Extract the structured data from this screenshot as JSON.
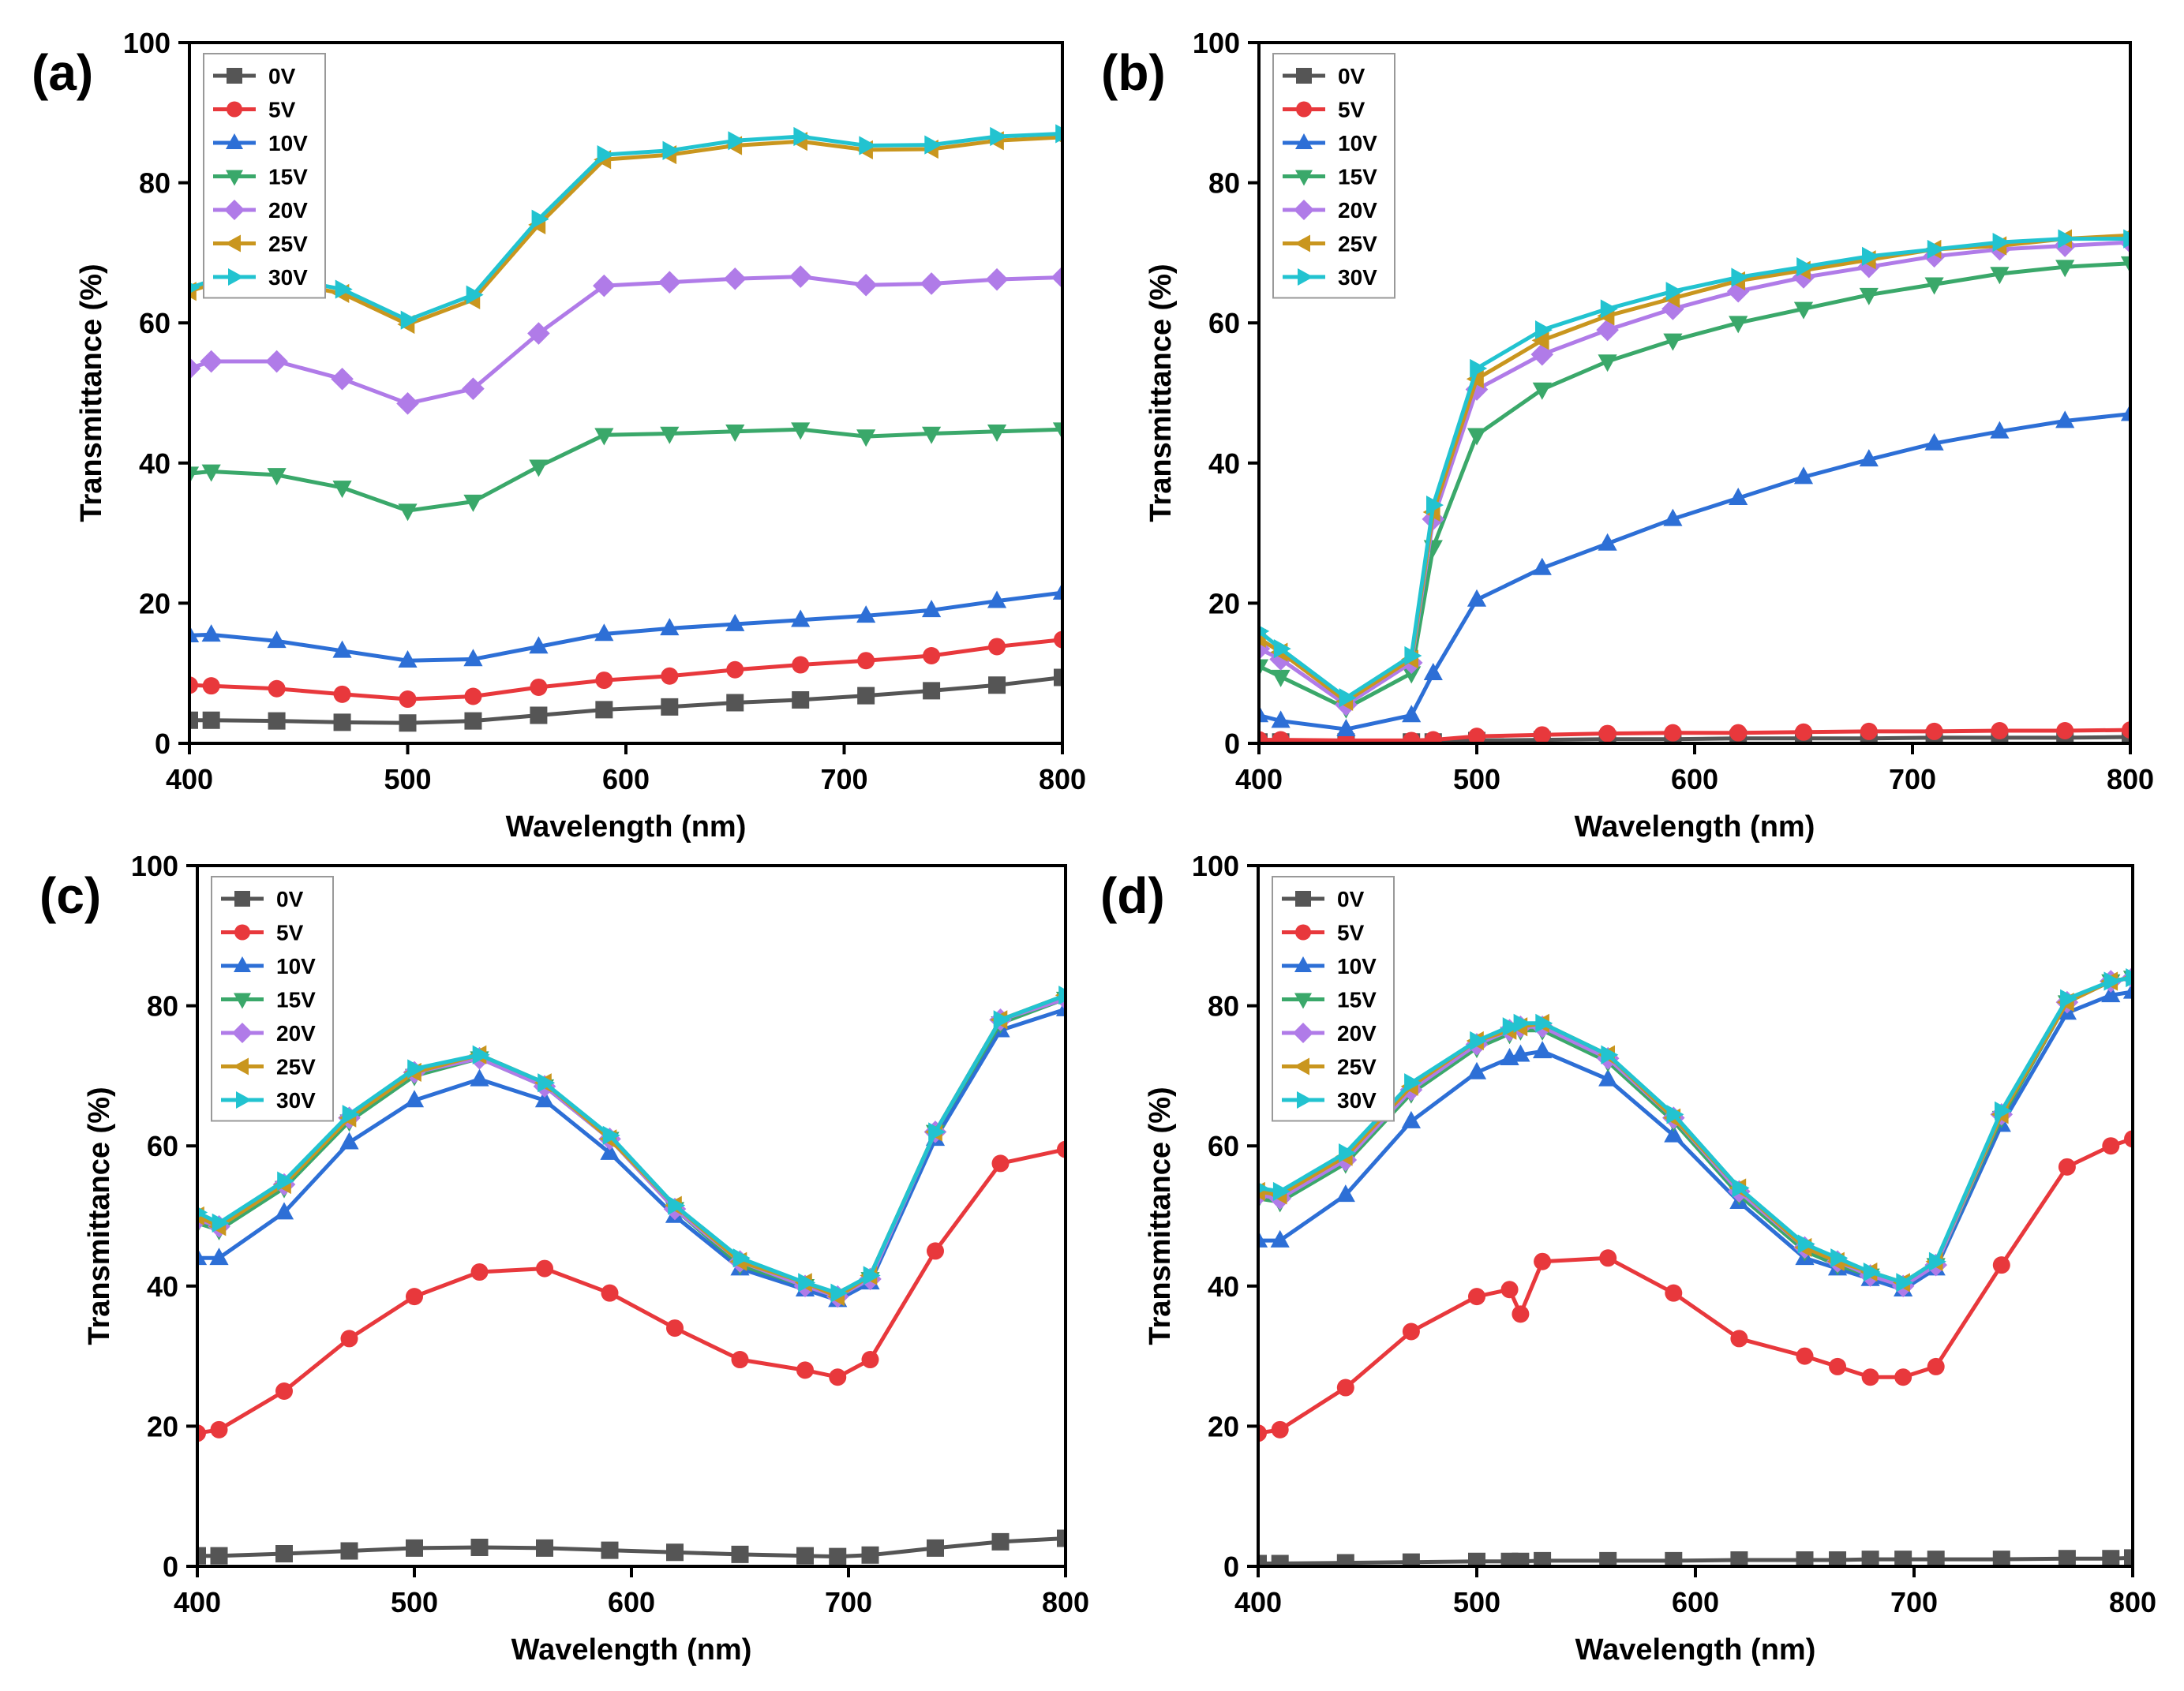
{
  "chart_data": [
    {
      "type": "line",
      "panel": "(a)",
      "xlabel": "Wavelength (nm)",
      "ylabel": "Transmittance (%)",
      "xlim": [
        400,
        800
      ],
      "ylim": [
        0,
        100
      ],
      "xticks": [
        400,
        500,
        600,
        700,
        800
      ],
      "yticks": [
        0,
        20,
        40,
        60,
        80,
        100
      ],
      "legend_position": "top-left",
      "x": [
        400,
        410,
        440,
        470,
        500,
        530,
        560,
        590,
        620,
        650,
        680,
        710,
        740,
        770,
        800
      ],
      "series": [
        {
          "name": "0V",
          "values": [
            3.3,
            3.3,
            3.2,
            3.0,
            2.9,
            3.2,
            4.0,
            4.8,
            5.2,
            5.8,
            6.2,
            6.8,
            7.5,
            8.3,
            9.4
          ]
        },
        {
          "name": "5V",
          "values": [
            8.3,
            8.2,
            7.8,
            7.0,
            6.3,
            6.7,
            8.0,
            9.0,
            9.6,
            10.5,
            11.2,
            11.8,
            12.5,
            13.8,
            14.8
          ]
        },
        {
          "name": "10V",
          "values": [
            15.4,
            15.5,
            14.6,
            13.2,
            11.8,
            12.0,
            13.8,
            15.6,
            16.4,
            17.0,
            17.6,
            18.2,
            19.0,
            20.3,
            21.5
          ]
        },
        {
          "name": "15V",
          "values": [
            38.5,
            38.8,
            38.3,
            36.5,
            33.2,
            34.5,
            39.5,
            44.0,
            44.2,
            44.5,
            44.8,
            43.8,
            44.2,
            44.5,
            44.8
          ]
        },
        {
          "name": "20V",
          "values": [
            53.5,
            54.5,
            54.5,
            52.0,
            48.5,
            50.6,
            58.5,
            65.3,
            65.8,
            66.3,
            66.6,
            65.4,
            65.6,
            66.2,
            66.5
          ]
        },
        {
          "name": "25V",
          "values": [
            64.5,
            65.5,
            66.0,
            64.2,
            59.8,
            63.3,
            74.0,
            83.3,
            84.0,
            85.3,
            85.9,
            84.7,
            84.8,
            86.0,
            86.5
          ]
        },
        {
          "name": "30V",
          "values": [
            65.0,
            66.0,
            66.6,
            64.8,
            60.4,
            64.0,
            74.8,
            84.0,
            84.6,
            86.0,
            86.6,
            85.3,
            85.4,
            86.6,
            87.0
          ]
        }
      ]
    },
    {
      "type": "line",
      "panel": "(b)",
      "xlabel": "Wavelength (nm)",
      "ylabel": "Transmittance (%)",
      "xlim": [
        400,
        800
      ],
      "ylim": [
        0,
        100
      ],
      "xticks": [
        400,
        500,
        600,
        700,
        800
      ],
      "yticks": [
        0,
        20,
        40,
        60,
        80,
        100
      ],
      "legend_position": "top-left",
      "x": [
        400,
        410,
        440,
        470,
        480,
        500,
        530,
        560,
        590,
        620,
        650,
        680,
        710,
        740,
        770,
        800
      ],
      "series": [
        {
          "name": "0V",
          "values": [
            0.2,
            0.2,
            0.2,
            0.2,
            0.2,
            0.4,
            0.5,
            0.6,
            0.6,
            0.7,
            0.7,
            0.7,
            0.8,
            0.8,
            0.8,
            0.9
          ]
        },
        {
          "name": "5V",
          "values": [
            0.5,
            0.5,
            0.4,
            0.4,
            0.5,
            1.0,
            1.2,
            1.4,
            1.5,
            1.5,
            1.6,
            1.7,
            1.7,
            1.8,
            1.8,
            1.9
          ]
        },
        {
          "name": "10V",
          "values": [
            4.0,
            3.2,
            2.0,
            4.0,
            10.0,
            20.5,
            25.0,
            28.5,
            32.0,
            35.0,
            38.0,
            40.5,
            42.8,
            44.5,
            46.0,
            47.0
          ]
        },
        {
          "name": "15V",
          "values": [
            11.0,
            9.5,
            5.0,
            10.0,
            28.0,
            44.0,
            50.5,
            54.5,
            57.5,
            60.0,
            62.0,
            64.0,
            65.5,
            67.0,
            68.0,
            68.5
          ]
        },
        {
          "name": "20V",
          "values": [
            13.5,
            12.0,
            5.5,
            11.5,
            32.0,
            50.5,
            55.5,
            59.0,
            62.0,
            64.5,
            66.5,
            68.0,
            69.5,
            70.5,
            71.0,
            71.5
          ]
        },
        {
          "name": "25V",
          "values": [
            15.0,
            13.0,
            6.0,
            12.0,
            33.0,
            52.0,
            57.5,
            61.0,
            63.5,
            66.0,
            67.5,
            69.0,
            70.5,
            71.0,
            72.0,
            72.5
          ]
        },
        {
          "name": "30V",
          "values": [
            16.0,
            13.5,
            6.5,
            12.5,
            34.0,
            53.5,
            59.0,
            62.0,
            64.5,
            66.5,
            68.0,
            69.5,
            70.5,
            71.5,
            72.0,
            72.0
          ]
        }
      ]
    },
    {
      "type": "line",
      "panel": "(c)",
      "xlabel": "Wavelength (nm)",
      "ylabel": "Transmittance (%)",
      "xlim": [
        400,
        800
      ],
      "ylim": [
        0,
        100
      ],
      "xticks": [
        400,
        500,
        600,
        700,
        800
      ],
      "yticks": [
        0,
        20,
        40,
        60,
        80,
        100
      ],
      "legend_position": "top-left",
      "x": [
        400,
        410,
        440,
        470,
        500,
        530,
        560,
        590,
        620,
        650,
        680,
        695,
        710,
        740,
        770,
        800
      ],
      "series": [
        {
          "name": "0V",
          "values": [
            1.5,
            1.5,
            1.8,
            2.2,
            2.6,
            2.7,
            2.6,
            2.3,
            2.0,
            1.7,
            1.5,
            1.4,
            1.6,
            2.6,
            3.5,
            4.0
          ]
        },
        {
          "name": "5V",
          "values": [
            19.0,
            19.5,
            25.0,
            32.5,
            38.5,
            42.0,
            42.5,
            39.0,
            34.0,
            29.5,
            28.0,
            27.0,
            29.5,
            45.0,
            57.5,
            59.5
          ]
        },
        {
          "name": "10V",
          "values": [
            44.0,
            44.0,
            50.5,
            60.5,
            66.5,
            69.5,
            66.5,
            59.0,
            50.0,
            42.5,
            39.5,
            38.0,
            40.5,
            61.0,
            76.5,
            79.5
          ]
        },
        {
          "name": "15V",
          "values": [
            49.0,
            48.0,
            54.0,
            63.5,
            70.0,
            72.5,
            68.5,
            61.0,
            51.0,
            43.0,
            40.0,
            38.5,
            41.0,
            62.0,
            77.5,
            81.0
          ]
        },
        {
          "name": "20V",
          "values": [
            49.5,
            48.5,
            54.5,
            64.0,
            70.5,
            72.5,
            68.5,
            61.0,
            51.0,
            43.5,
            40.0,
            38.5,
            41.0,
            62.0,
            78.0,
            81.0
          ]
        },
        {
          "name": "25V",
          "values": [
            50.0,
            48.5,
            54.5,
            64.0,
            70.5,
            73.0,
            69.0,
            61.0,
            51.5,
            43.5,
            40.5,
            38.5,
            41.5,
            62.0,
            78.0,
            81.5
          ]
        },
        {
          "name": "30V",
          "values": [
            50.5,
            49.0,
            55.0,
            64.5,
            71.0,
            73.0,
            69.0,
            61.5,
            51.5,
            44.0,
            40.5,
            39.0,
            41.5,
            62.0,
            78.0,
            81.5
          ]
        }
      ]
    },
    {
      "type": "line",
      "panel": "(d)",
      "xlabel": "Wavelength (nm)",
      "ylabel": "Transmittance (%)",
      "xlim": [
        400,
        800
      ],
      "ylim": [
        0,
        100
      ],
      "xticks": [
        400,
        500,
        600,
        700,
        800
      ],
      "yticks": [
        0,
        20,
        40,
        60,
        80,
        100
      ],
      "legend_position": "top-left",
      "x": [
        400,
        410,
        440,
        470,
        500,
        515,
        520,
        530,
        560,
        590,
        620,
        650,
        665,
        680,
        695,
        710,
        740,
        770,
        790,
        800
      ],
      "series": [
        {
          "name": "0V",
          "values": [
            0.4,
            0.4,
            0.5,
            0.6,
            0.7,
            0.7,
            0.7,
            0.8,
            0.8,
            0.8,
            0.9,
            0.9,
            0.9,
            1.0,
            1.0,
            1.0,
            1.0,
            1.1,
            1.1,
            1.2
          ]
        },
        {
          "name": "5V",
          "values": [
            19.0,
            19.5,
            25.5,
            33.5,
            38.5,
            39.5,
            36.0,
            43.5,
            44.0,
            39.0,
            32.5,
            30.0,
            28.5,
            27.0,
            27.0,
            28.5,
            43.0,
            57.0,
            60.0,
            61.0
          ]
        },
        {
          "name": "10V",
          "values": [
            46.5,
            46.5,
            53.0,
            63.5,
            70.5,
            72.5,
            73.0,
            73.5,
            69.5,
            61.5,
            52.0,
            44.0,
            42.5,
            41.0,
            39.5,
            42.5,
            63.0,
            79.0,
            81.5,
            82.0
          ]
        },
        {
          "name": "15V",
          "values": [
            52.5,
            52.0,
            57.5,
            67.5,
            74.0,
            76.0,
            76.5,
            76.5,
            72.0,
            63.5,
            53.0,
            45.0,
            43.0,
            41.5,
            40.0,
            43.0,
            64.0,
            80.5,
            83.5,
            84.0
          ]
        },
        {
          "name": "20V",
          "values": [
            53.0,
            52.5,
            58.0,
            68.0,
            74.5,
            76.5,
            77.0,
            77.0,
            72.5,
            64.0,
            53.5,
            45.5,
            43.5,
            41.5,
            40.0,
            43.0,
            64.5,
            80.5,
            83.5,
            84.0
          ]
        },
        {
          "name": "25V",
          "values": [
            53.5,
            53.0,
            58.5,
            68.5,
            75.0,
            76.5,
            77.0,
            77.5,
            73.0,
            64.0,
            54.0,
            45.5,
            43.5,
            42.0,
            40.5,
            43.5,
            64.5,
            80.5,
            83.5,
            84.0
          ]
        },
        {
          "name": "30V",
          "values": [
            54.0,
            53.5,
            59.0,
            69.0,
            75.0,
            77.0,
            77.5,
            77.5,
            73.0,
            64.5,
            54.0,
            46.0,
            44.0,
            42.0,
            40.5,
            43.5,
            65.0,
            81.0,
            83.5,
            84.0
          ]
        }
      ]
    }
  ],
  "series_styles": [
    {
      "name": "0V",
      "color": "#555555",
      "marker": "square"
    },
    {
      "name": "5V",
      "color": "#e8383c",
      "marker": "circle"
    },
    {
      "name": "10V",
      "color": "#2d6fd6",
      "marker": "triangle-up"
    },
    {
      "name": "15V",
      "color": "#3aa86a",
      "marker": "triangle-down"
    },
    {
      "name": "20V",
      "color": "#b07be8",
      "marker": "diamond"
    },
    {
      "name": "25V",
      "color": "#c9961e",
      "marker": "triangle-left"
    },
    {
      "name": "30V",
      "color": "#22c3d0",
      "marker": "triangle-right"
    }
  ]
}
